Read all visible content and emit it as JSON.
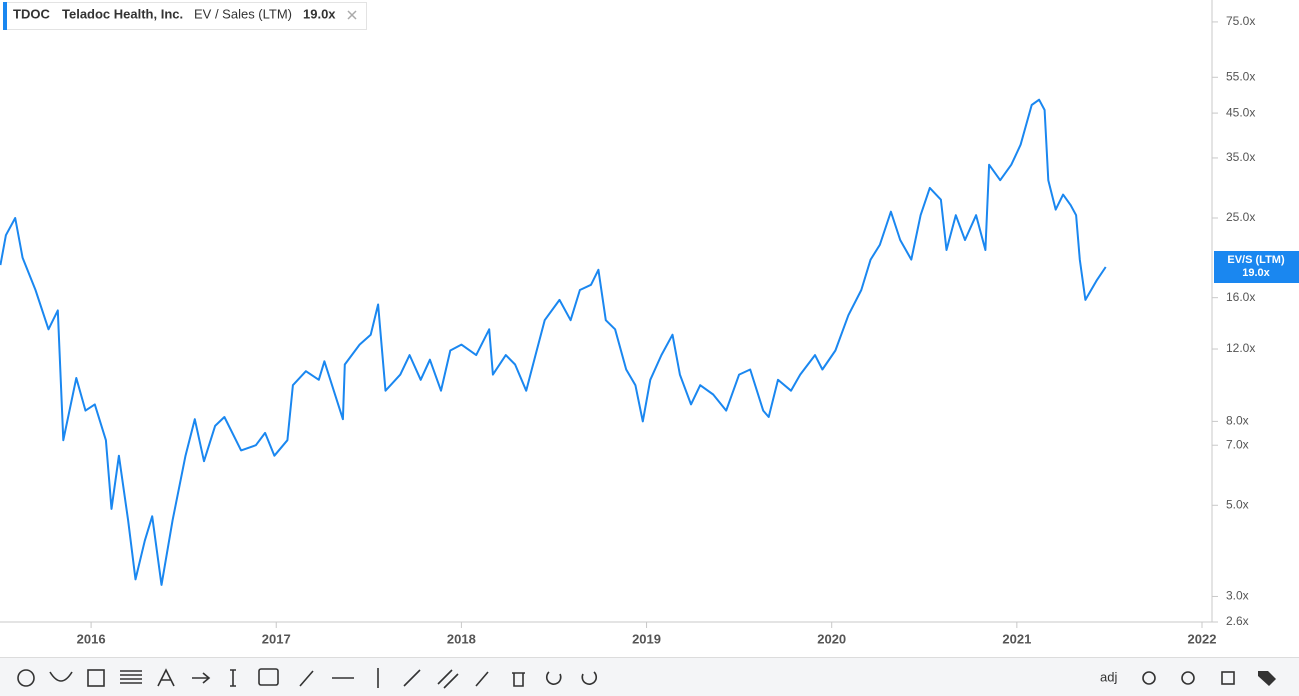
{
  "header": {
    "ticker": "TDOC",
    "company": "Teladoc Health, Inc.",
    "metric": "EV / Sales (LTM)",
    "value": "19.0x"
  },
  "chart_data": {
    "type": "line",
    "log_scale": true,
    "x": [
      2015.51,
      2015.54,
      2015.59,
      2015.63,
      2015.7,
      2015.77,
      2015.82,
      2015.85,
      2015.92,
      2015.97,
      2016.02,
      2016.08,
      2016.11,
      2016.15,
      2016.2,
      2016.24,
      2016.29,
      2016.33,
      2016.38,
      2016.44,
      2016.51,
      2016.56,
      2016.61,
      2016.67,
      2016.72,
      2016.81,
      2016.89,
      2016.94,
      2016.99,
      2017.06,
      2017.09,
      2017.16,
      2017.23,
      2017.26,
      2017.36,
      2017.37,
      2017.45,
      2017.51,
      2017.55,
      2017.59,
      2017.67,
      2017.72,
      2017.78,
      2017.83,
      2017.89,
      2017.94,
      2018.0,
      2018.08,
      2018.15,
      2018.17,
      2018.24,
      2018.29,
      2018.35,
      2018.4,
      2018.45,
      2018.53,
      2018.59,
      2018.64,
      2018.7,
      2018.74,
      2018.78,
      2018.83,
      2018.89,
      2018.94,
      2018.98,
      2019.02,
      2019.08,
      2019.14,
      2019.18,
      2019.24,
      2019.29,
      2019.36,
      2019.43,
      2019.5,
      2019.56,
      2019.63,
      2019.66,
      2019.71,
      2019.78,
      2019.83,
      2019.91,
      2019.95,
      2020.02,
      2020.09,
      2020.16,
      2020.21,
      2020.26,
      2020.32,
      2020.37,
      2020.43,
      2020.48,
      2020.53,
      2020.59,
      2020.62,
      2020.67,
      2020.72,
      2020.78,
      2020.83,
      2020.85,
      2020.91,
      2020.97,
      2021.02,
      2021.08,
      2021.12,
      2021.15,
      2021.17,
      2021.21,
      2021.25,
      2021.29,
      2021.32,
      2021.34,
      2021.37,
      2021.43,
      2021.48
    ],
    "series": [
      {
        "name": "EV/S (LTM)",
        "color": "#1a87f0",
        "values": [
          19.2,
          22.7,
          25.0,
          20.0,
          16.7,
          13.4,
          14.9,
          7.2,
          10.2,
          8.5,
          8.8,
          7.2,
          4.9,
          6.6,
          4.6,
          3.3,
          4.1,
          4.7,
          3.2,
          4.6,
          6.6,
          8.1,
          6.4,
          7.8,
          8.2,
          6.8,
          7.0,
          7.5,
          6.6,
          7.2,
          9.8,
          10.6,
          10.1,
          11.2,
          8.1,
          11.0,
          12.3,
          13.0,
          15.4,
          9.5,
          10.4,
          11.6,
          10.1,
          11.3,
          9.5,
          11.9,
          12.3,
          11.6,
          13.4,
          10.4,
          11.6,
          11.0,
          9.5,
          11.6,
          14.1,
          15.8,
          14.1,
          16.7,
          17.2,
          18.7,
          14.1,
          13.4,
          10.7,
          9.8,
          8.0,
          10.1,
          11.6,
          13.0,
          10.4,
          8.8,
          9.8,
          9.3,
          8.5,
          10.4,
          10.7,
          8.5,
          8.2,
          10.1,
          9.5,
          10.4,
          11.6,
          10.7,
          11.9,
          14.5,
          16.7,
          19.8,
          21.5,
          25.9,
          22.1,
          19.8,
          25.4,
          29.6,
          27.7,
          20.9,
          25.4,
          22.1,
          25.4,
          20.9,
          33.7,
          30.9,
          33.7,
          37.7,
          47.1,
          48.5,
          45.8,
          30.9,
          26.2,
          28.5,
          26.9,
          25.4,
          19.8,
          15.8,
          17.6,
          19.0
        ]
      }
    ],
    "xlim": [
      2015.508,
      2022.054
    ],
    "xticks": [
      2016,
      2017,
      2018,
      2019,
      2020,
      2021,
      2022
    ],
    "ylim": [
      2.6,
      84.8
    ],
    "yticks": [
      {
        "value": 75,
        "label": "75.0x"
      },
      {
        "value": 55,
        "label": "55.0x"
      },
      {
        "value": 45,
        "label": "45.0x"
      },
      {
        "value": 35,
        "label": "35.0x"
      },
      {
        "value": 25,
        "label": "25.0x"
      },
      {
        "value": 16,
        "label": "16.0x"
      },
      {
        "value": 12,
        "label": "12.0x"
      },
      {
        "value": 8,
        "label": "8.0x"
      },
      {
        "value": 7,
        "label": "7.0x"
      },
      {
        "value": 5,
        "label": "5.0x"
      },
      {
        "value": 3,
        "label": "3.0x"
      },
      {
        "value": 2.6,
        "label": "2.6x"
      }
    ]
  },
  "toolbar": {
    "adj_label": "adj"
  }
}
